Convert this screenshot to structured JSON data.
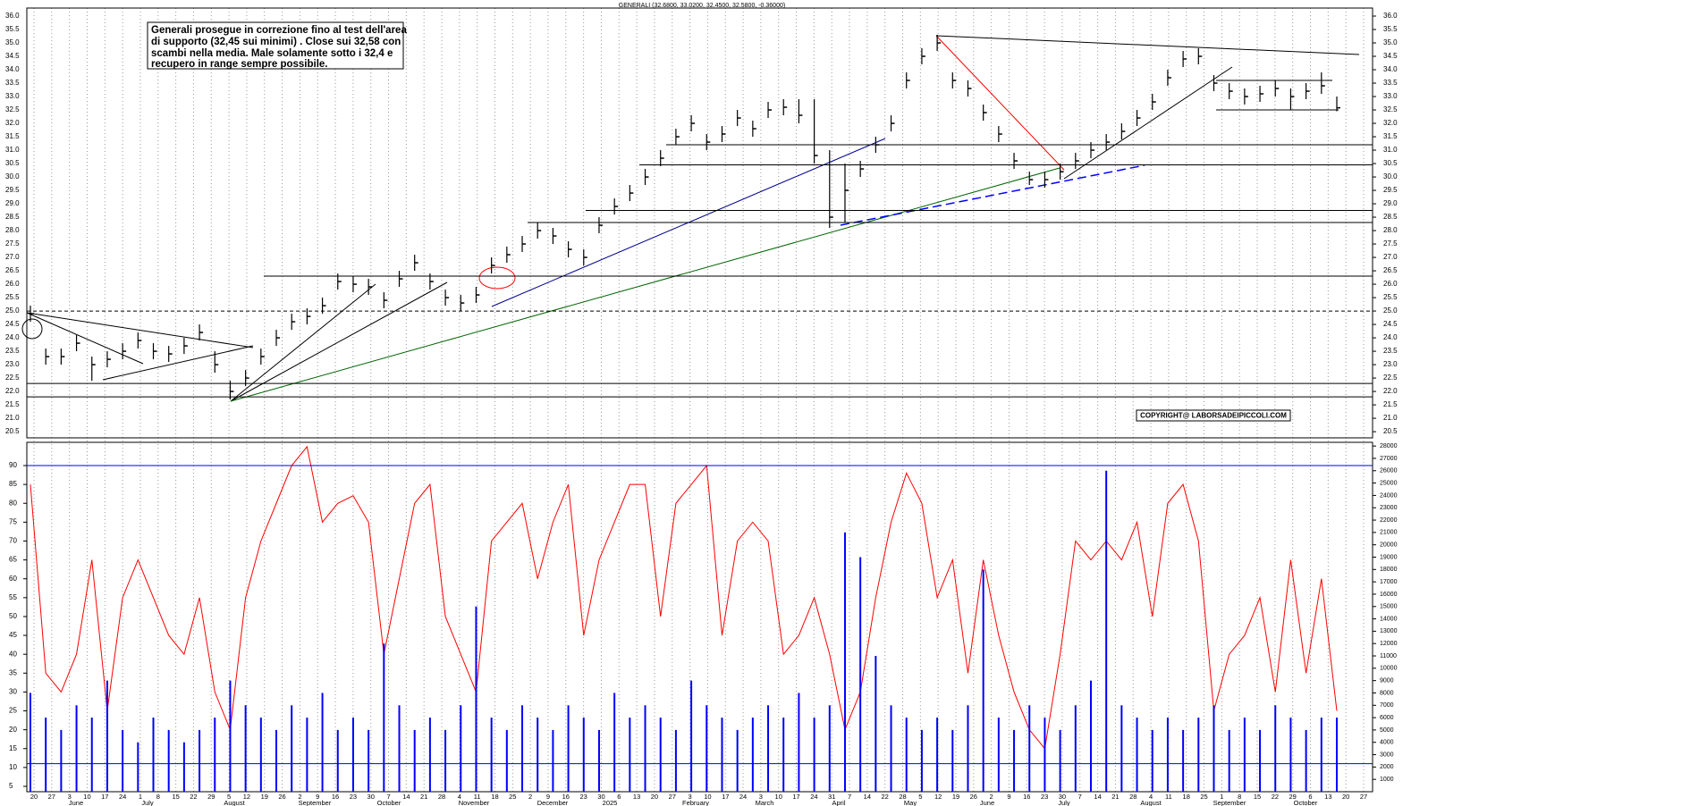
{
  "chart_data": [
    {
      "type": "ohlc",
      "title": "GENERALI (32.6800, 33.0200, 32.4500, 32.5800, -0.36000)",
      "annotation": [
        "Generali prosegue in correzione fino al test dell'area",
        "di supporto (32,45 sui minimi) . Close sui 32,58 con",
        "scambi nella media. Male solamente sotto i 32,4 e",
        "recupero in range sempre possibile."
      ],
      "copyright": "COPYRIGHT@ LABORSADEIPICCOLI.COM",
      "color": "#000000",
      "ylim": [
        20.27,
        36.3
      ],
      "yticks": [
        {
          "value": 20.5,
          "label": "20.5"
        },
        {
          "value": 21,
          "label": "21.0"
        },
        {
          "value": 21.5,
          "label": "21.5"
        },
        {
          "value": 22,
          "label": "22.0"
        },
        {
          "value": 22.5,
          "label": "22.5"
        },
        {
          "value": 23,
          "label": "23.0"
        },
        {
          "value": 23.5,
          "label": "23.5"
        },
        {
          "value": 24,
          "label": "24.0"
        },
        {
          "value": 24.5,
          "label": "24.5"
        },
        {
          "value": 25,
          "label": "25.0"
        },
        {
          "value": 25.5,
          "label": "25.5"
        },
        {
          "value": 26,
          "label": "26.0"
        },
        {
          "value": 26.5,
          "label": "26.5"
        },
        {
          "value": 27,
          "label": "27.0"
        },
        {
          "value": 27.5,
          "label": "27.5"
        },
        {
          "value": 28,
          "label": "28.0"
        },
        {
          "value": 28.5,
          "label": "28.5"
        },
        {
          "value": 29,
          "label": "29.0"
        },
        {
          "value": 29.5,
          "label": "29.5"
        },
        {
          "value": 30,
          "label": "30.0"
        },
        {
          "value": 30.5,
          "label": "30.5"
        },
        {
          "value": 31,
          "label": "31.0"
        },
        {
          "value": 31.5,
          "label": "31.5"
        },
        {
          "value": 32,
          "label": "32.0"
        },
        {
          "value": 32.5,
          "label": "32.5"
        },
        {
          "value": 33,
          "label": "33.0"
        },
        {
          "value": 33.5,
          "label": "33.5"
        },
        {
          "value": 34,
          "label": "34.0"
        },
        {
          "value": 34.5,
          "label": "34.5"
        },
        {
          "value": 35,
          "label": "35.0"
        },
        {
          "value": 35.5,
          "label": "35.5"
        },
        {
          "value": 36,
          "label": "36.0"
        }
      ],
      "levels": [
        21.8,
        22.3,
        25.0,
        26.3,
        28.3,
        28.75,
        30.45,
        31.2
      ],
      "dashed_level": 25.0,
      "high": [
        25.2,
        23.6,
        23.6,
        24.1,
        23.3,
        23.5,
        23.8,
        24.2,
        23.8,
        23.7,
        24.0,
        24.5,
        23.5,
        22.4,
        22.8,
        23.6,
        24.3,
        24.9,
        25.1,
        25.5,
        26.4,
        26.3,
        26.2,
        25.7,
        26.5,
        27.1,
        26.4,
        25.8,
        25.6,
        25.9,
        27.0,
        27.4,
        27.8,
        28.3,
        28.1,
        27.6,
        27.3,
        28.5,
        29.2,
        29.7,
        30.3,
        31.0,
        31.8,
        32.3,
        31.6,
        31.9,
        32.5,
        32.1,
        32.8,
        32.9,
        32.9,
        32.9,
        31.0,
        30.5,
        30.6,
        31.5,
        32.3,
        33.9,
        34.8,
        35.3,
        33.9,
        33.6,
        32.7,
        31.9,
        30.9,
        30.2,
        30.2,
        30.5,
        30.9,
        31.3,
        31.6,
        32.0,
        32.5,
        33.1,
        34.0,
        34.7,
        34.8,
        33.8,
        33.5,
        33.3,
        33.4,
        33.6,
        33.3,
        33.5,
        33.9,
        33.0
      ],
      "low": [
        24.6,
        23.0,
        23.0,
        23.5,
        22.4,
        22.9,
        23.2,
        23.6,
        23.2,
        23.1,
        23.4,
        23.9,
        22.7,
        21.7,
        22.2,
        23.0,
        23.7,
        24.3,
        24.5,
        24.9,
        25.8,
        25.7,
        25.6,
        25.1,
        25.9,
        26.5,
        25.8,
        25.2,
        25.0,
        25.3,
        26.4,
        26.8,
        27.2,
        27.7,
        27.5,
        27.0,
        26.7,
        27.9,
        28.6,
        29.1,
        29.7,
        30.4,
        31.2,
        31.7,
        31.0,
        31.3,
        31.9,
        31.5,
        32.2,
        32.3,
        32.0,
        30.5,
        28.1,
        28.3,
        30.0,
        30.9,
        31.7,
        33.3,
        34.2,
        34.7,
        33.3,
        33.0,
        32.1,
        31.3,
        30.3,
        29.7,
        29.6,
        29.9,
        30.3,
        30.7,
        31.0,
        31.4,
        31.9,
        32.5,
        33.4,
        34.1,
        34.2,
        33.2,
        32.9,
        32.7,
        32.8,
        33.0,
        32.5,
        32.9,
        33.1,
        32.45
      ],
      "close": [
        24.9,
        23.3,
        23.3,
        23.8,
        23.0,
        23.2,
        23.5,
        23.9,
        23.5,
        23.4,
        23.7,
        24.2,
        23.0,
        22.0,
        22.5,
        23.3,
        24.0,
        24.6,
        24.8,
        25.2,
        26.1,
        26.0,
        25.9,
        25.4,
        26.2,
        26.8,
        26.1,
        25.5,
        25.3,
        25.6,
        26.7,
        27.1,
        27.5,
        28.0,
        27.8,
        27.3,
        27.0,
        28.2,
        28.9,
        29.4,
        30.0,
        30.7,
        31.5,
        32.0,
        31.3,
        31.6,
        32.2,
        31.8,
        32.5,
        32.6,
        32.3,
        30.8,
        28.5,
        29.5,
        30.3,
        31.2,
        32.0,
        33.6,
        34.5,
        35.0,
        33.6,
        33.3,
        32.4,
        31.6,
        30.6,
        29.9,
        29.9,
        30.2,
        30.6,
        31.0,
        31.3,
        31.7,
        32.2,
        32.8,
        33.7,
        34.4,
        34.5,
        33.5,
        33.2,
        33.0,
        33.1,
        33.3,
        33.0,
        33.2,
        33.4,
        32.58
      ]
    },
    {
      "type": "line",
      "ylim": [
        3.58,
        96.16
      ],
      "yticks": [
        5,
        10,
        15,
        20,
        25,
        30,
        35,
        40,
        45,
        50,
        55,
        60,
        65,
        70,
        75,
        80,
        85,
        90
      ],
      "y2lim": [
        0,
        28300
      ],
      "y2ticks": [
        1000,
        2000,
        3000,
        4000,
        5000,
        6000,
        7000,
        8000,
        9000,
        10000,
        11000,
        12000,
        13000,
        14000,
        15000,
        16000,
        17000,
        18000,
        19000,
        20000,
        21000,
        22000,
        23000,
        24000,
        25000,
        26000,
        27000,
        28000
      ],
      "guides": [
        90,
        11
      ],
      "guide_color": "#0000ff",
      "series": [
        {
          "color": "#ff0000",
          "values": [
            85,
            35,
            30,
            40,
            65,
            25,
            55,
            65,
            55,
            45,
            40,
            55,
            30,
            20,
            55,
            70,
            80,
            90,
            95,
            75,
            80,
            82,
            75,
            40,
            60,
            80,
            85,
            50,
            40,
            30,
            70,
            75,
            80,
            60,
            75,
            85,
            45,
            65,
            75,
            85,
            85,
            50,
            80,
            85,
            90,
            45,
            70,
            75,
            70,
            40,
            45,
            55,
            40,
            20,
            30,
            55,
            75,
            88,
            80,
            55,
            65,
            35,
            65,
            45,
            30,
            20,
            15,
            40,
            70,
            65,
            70,
            65,
            75,
            50,
            80,
            85,
            70,
            25,
            40,
            45,
            55,
            30,
            65,
            35,
            60,
            25
          ]
        },
        {
          "type": "bar",
          "axis": "y2",
          "color": "#0000ff",
          "values": [
            8000,
            6000,
            5000,
            7000,
            6000,
            9000,
            5000,
            4000,
            6000,
            5000,
            4000,
            5000,
            6000,
            9000,
            7000,
            6000,
            5000,
            7000,
            6000,
            8000,
            5000,
            6000,
            5000,
            12000,
            7000,
            5000,
            6000,
            5000,
            7000,
            15000,
            6000,
            5000,
            7000,
            6000,
            5000,
            7000,
            6000,
            5000,
            8000,
            6000,
            7000,
            6000,
            5000,
            9000,
            7000,
            6000,
            5000,
            6000,
            7000,
            6000,
            8000,
            6000,
            7000,
            21000,
            19000,
            11000,
            7000,
            6000,
            5000,
            6000,
            5000,
            7000,
            18000,
            6000,
            5000,
            7000,
            6000,
            5000,
            7000,
            9000,
            26000,
            7000,
            6000,
            5000,
            6000,
            5000,
            6000,
            7000,
            5000,
            6000,
            5000,
            7000,
            6000,
            5000,
            6000,
            6000
          ]
        }
      ],
      "date_ticks": [
        "20",
        "27",
        "3",
        "10",
        "17",
        "24",
        "1",
        "8",
        "15",
        "22",
        "29",
        "5",
        "12",
        "19",
        "26",
        "2",
        "9",
        "16",
        "23",
        "30",
        "7",
        "14",
        "21",
        "28",
        "4",
        "11",
        "18",
        "25",
        "2",
        "9",
        "16",
        "23",
        "30",
        "6",
        "13",
        "20",
        "27",
        "3",
        "10",
        "17",
        "24",
        "3",
        "10",
        "17",
        "24",
        "31",
        "7",
        "14",
        "22",
        "28",
        "5",
        "12",
        "19",
        "26",
        "2",
        "9",
        "16",
        "23",
        "30",
        "7",
        "14",
        "21",
        "28",
        "4",
        "11",
        "18",
        "25",
        "1",
        "8",
        "15",
        "22",
        "29",
        "6",
        "13",
        "20",
        "27"
      ],
      "months": [
        "June",
        "July",
        "August",
        "September",
        "October",
        "November",
        "December",
        "2025",
        "February",
        "March",
        "April",
        "May",
        "June",
        "July",
        "August",
        "September",
        "October"
      ]
    }
  ]
}
